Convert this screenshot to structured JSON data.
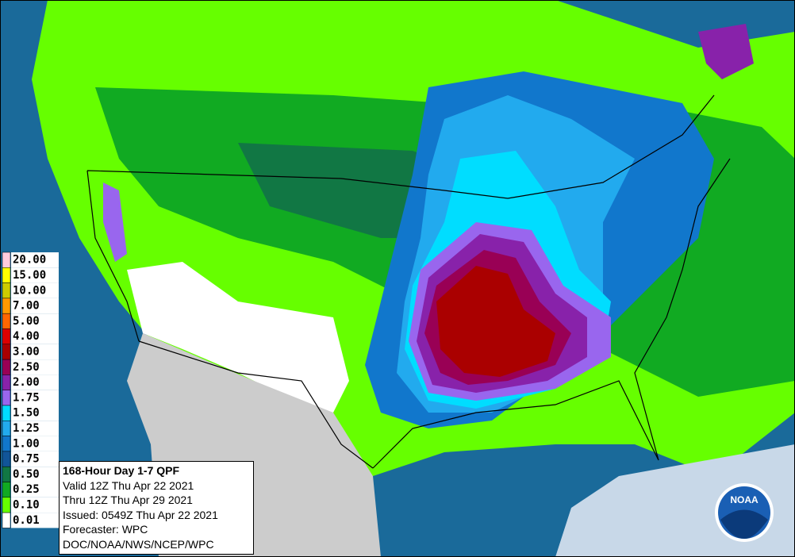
{
  "map": {
    "legend": [
      {
        "label": "20.00",
        "color": "#ffccdd"
      },
      {
        "label": "15.00",
        "color": "#ffff00"
      },
      {
        "label": "10.00",
        "color": "#cccc00"
      },
      {
        "label": "7.00",
        "color": "#ff9900"
      },
      {
        "label": "5.00",
        "color": "#ff6600"
      },
      {
        "label": "4.00",
        "color": "#dd0000"
      },
      {
        "label": "3.00",
        "color": "#aa0000"
      },
      {
        "label": "2.50",
        "color": "#990055"
      },
      {
        "label": "2.00",
        "color": "#8822aa"
      },
      {
        "label": "1.75",
        "color": "#9966ee"
      },
      {
        "label": "1.50",
        "color": "#00ddff"
      },
      {
        "label": "1.25",
        "color": "#22aaee"
      },
      {
        "label": "1.00",
        "color": "#1177cc"
      },
      {
        "label": "0.75",
        "color": "#115599"
      },
      {
        "label": "0.50",
        "color": "#117744"
      },
      {
        "label": "0.25",
        "color": "#11aa22"
      },
      {
        "label": "0.10",
        "color": "#66ff00"
      },
      {
        "label": "0.01",
        "color": "#ffffff"
      }
    ],
    "info": {
      "title": "168-Hour Day 1-7 QPF",
      "lines": [
        "Valid 12Z Thu Apr 22 2021",
        "Thru 12Z Thu Apr 29 2021",
        "Issued: 0549Z Thu Apr 22 2021",
        "Forecaster: WPC",
        "DOC/NOAA/NWS/NCEP/WPC"
      ]
    },
    "logo": "NOAA"
  }
}
